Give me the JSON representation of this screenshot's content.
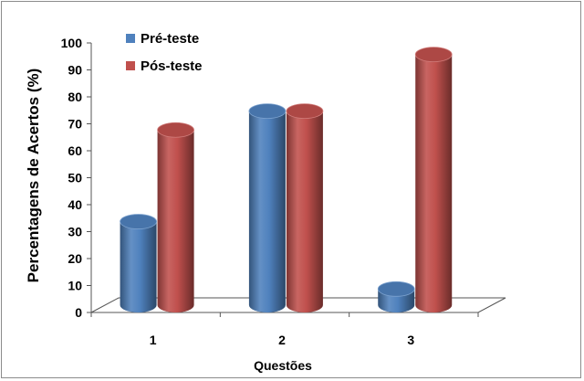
{
  "chart_data": {
    "type": "bar",
    "style": "3d-cylinder",
    "categories": [
      "1",
      "2",
      "3"
    ],
    "series": [
      {
        "name": "Pré-teste",
        "values": [
          31,
          72,
          6
        ],
        "color": "#4f81bd"
      },
      {
        "name": "Pós-teste",
        "values": [
          65,
          72,
          93
        ],
        "color": "#c0504d"
      }
    ],
    "xlabel": "Questões",
    "ylabel": "Percentagens de Acertos (%)",
    "ylim": [
      0,
      100
    ],
    "yticks": [
      "0",
      "10",
      "20",
      "30",
      "40",
      "50",
      "60",
      "70",
      "80",
      "90",
      "100"
    ],
    "grid": false,
    "legend_position": "top-left"
  }
}
